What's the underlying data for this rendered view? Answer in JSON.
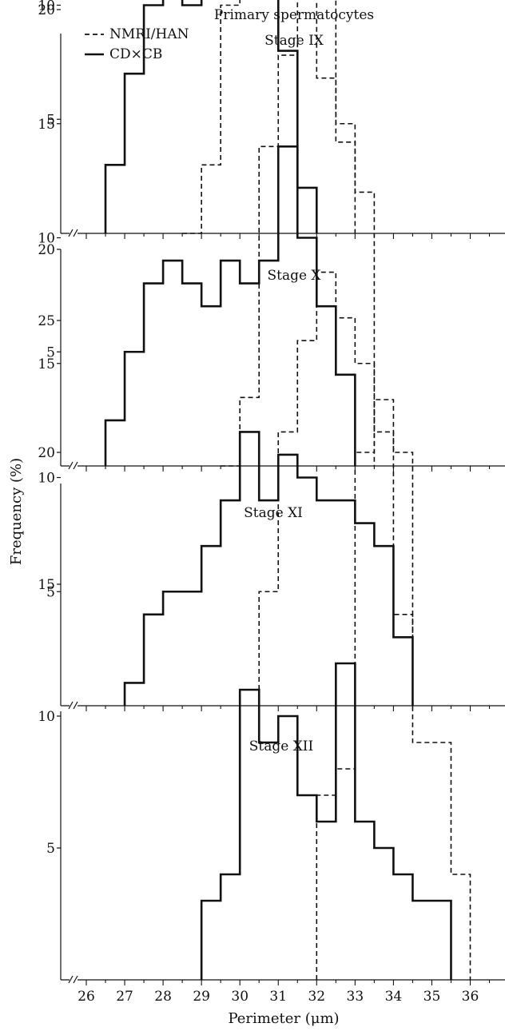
{
  "figure_title": "Primary spermatocytes",
  "y_axis_title": "Frequency (%)",
  "x_axis_title": "Perimeter (μm)",
  "legend": [
    {
      "label": "NMRI/HAN",
      "style": "dashed"
    },
    {
      "label": "CD×CB",
      "style": "solid"
    }
  ],
  "colors": {
    "line": "#111111",
    "background": "#ffffff"
  },
  "chart_data": [
    {
      "type": "line",
      "title": "Stage IX",
      "xlabel": "",
      "ylabel": "",
      "xlim": [
        25.75,
        36.9
      ],
      "ylim": [
        0,
        25
      ],
      "y_ticks": [
        5,
        10,
        15,
        20
      ],
      "axis_break": true,
      "series": [
        {
          "name": "NMRI/HAN",
          "style": "dashed",
          "x": [
            28.5,
            29.0,
            29.5,
            30.0,
            30.5,
            31.0,
            31.5,
            32.0,
            32.5
          ],
          "values": [
            0,
            3,
            10,
            18,
            21,
            19,
            15,
            11,
            4
          ]
        },
        {
          "name": "CD×CB",
          "style": "solid",
          "x": [
            26.5,
            27.0,
            27.5,
            28.0,
            28.5,
            29.0,
            29.5,
            30.0,
            30.5,
            31.0,
            31.5,
            32.0
          ],
          "values": [
            3,
            7,
            10,
            12,
            10,
            11,
            13,
            15,
            11,
            8,
            2,
            0
          ]
        }
      ]
    },
    {
      "type": "line",
      "title": "Stage X",
      "xlabel": "",
      "ylabel": "",
      "xlim": [
        25.75,
        36.9
      ],
      "ylim": [
        0,
        25
      ],
      "y_ticks": [
        5,
        10,
        15,
        20
      ],
      "axis_break": true,
      "series": [
        {
          "name": "NMRI/HAN",
          "style": "dashed",
          "x": [
            29.5,
            30.0,
            30.5,
            31.0,
            31.5,
            32.0,
            32.5,
            33.0
          ],
          "values": [
            0,
            3,
            14,
            18,
            21,
            17,
            15,
            12
          ]
        },
        {
          "name": "CD×CB",
          "style": "solid",
          "x": [
            26.5,
            27.0,
            27.5,
            28.0,
            28.5,
            29.0,
            29.5,
            30.0,
            30.5,
            31.0,
            31.5,
            32.0,
            32.5,
            33.0
          ],
          "values": [
            2,
            5,
            8,
            9,
            8,
            7,
            9,
            8,
            9,
            14,
            10,
            7,
            4,
            0
          ]
        }
      ]
    },
    {
      "type": "line",
      "title": "Stage XI",
      "xlabel": "",
      "ylabel": "",
      "xlim": [
        25.75,
        36.9
      ],
      "ylim": [
        0,
        25
      ],
      "y_ticks": [
        5,
        10,
        15,
        20
      ],
      "axis_break": true,
      "series": [
        {
          "name": "NMRI/HAN",
          "style": "dashed",
          "x": [
            30.5,
            31.0,
            31.5,
            32.0,
            32.5,
            33.0,
            33.5,
            34.0,
            34.5
          ],
          "values": [
            5,
            12,
            16,
            19,
            17,
            15,
            12,
            4,
            0
          ]
        },
        {
          "name": "CD×CB",
          "style": "solid",
          "x": [
            27.0,
            27.5,
            28.0,
            28.5,
            29.0,
            29.5,
            30.0,
            30.5,
            31.0,
            31.5,
            32.0,
            32.5,
            33.0,
            33.5,
            34.0,
            34.5
          ],
          "values": [
            1,
            4,
            5,
            5,
            7,
            9,
            12,
            9,
            11,
            10,
            9,
            9,
            8,
            7,
            3,
            0
          ]
        }
      ]
    },
    {
      "type": "line",
      "title": "Stage XII",
      "xlabel": "Perimeter (μm)",
      "ylabel": "",
      "xlim": [
        25.75,
        36.9
      ],
      "ylim": [
        0,
        30
      ],
      "y_ticks": [
        5,
        10,
        15,
        20,
        25
      ],
      "x_ticks": [
        26,
        27,
        28,
        29,
        30,
        31,
        32,
        33,
        34,
        35,
        36
      ],
      "axis_break": true,
      "series": [
        {
          "name": "NMRI/HAN",
          "style": "dashed",
          "x": [
            32.0,
            32.5,
            33.0,
            33.5,
            34.0,
            34.5,
            35.0,
            35.5,
            36.0
          ],
          "values": [
            7,
            8,
            20,
            22,
            20,
            9,
            9,
            4,
            0
          ]
        },
        {
          "name": "CD×CB",
          "style": "solid",
          "x": [
            29.0,
            29.5,
            30.0,
            30.5,
            31.0,
            31.5,
            32.0,
            32.5,
            33.0,
            33.5,
            34.0,
            34.5,
            35.0,
            35.5
          ],
          "values": [
            3,
            4,
            11,
            9,
            10,
            7,
            6,
            12,
            6,
            5,
            4,
            3,
            3,
            0
          ]
        }
      ]
    }
  ]
}
